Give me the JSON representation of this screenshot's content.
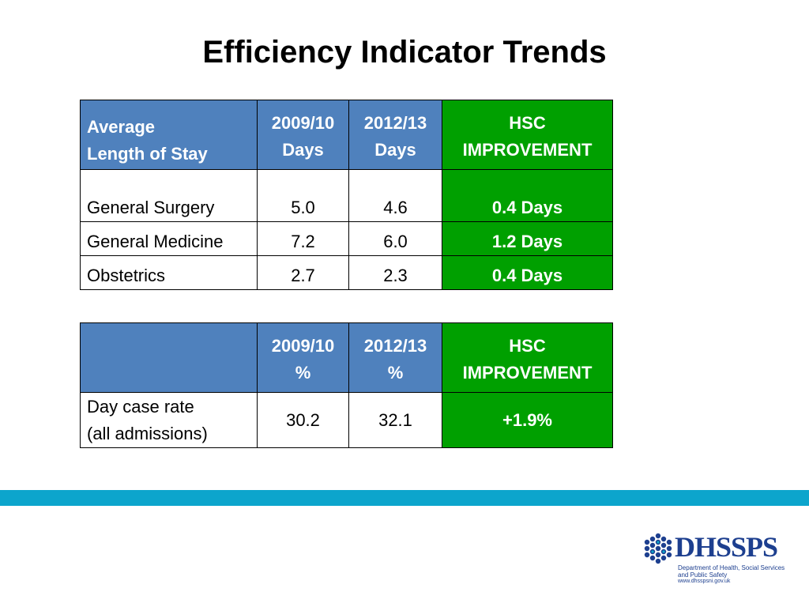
{
  "title": "Efficiency Indicator Trends",
  "table1": {
    "header": {
      "label_line1": "Average",
      "label_line2": "Length of Stay",
      "col1_line1": "2009/10",
      "col1_line2": "Days",
      "col2_line1": "2012/13",
      "col2_line2": "Days",
      "col3_line1": "HSC",
      "col3_line2": "IMPROVEMENT"
    },
    "rows": [
      {
        "label": "General Surgery",
        "v1": "5.0",
        "v2": "4.6",
        "imp": "0.4 Days"
      },
      {
        "label": "General Medicine",
        "v1": "7.2",
        "v2": "6.0",
        "imp": "1.2 Days"
      },
      {
        "label": "Obstetrics",
        "v1": "2.7",
        "v2": "2.3",
        "imp": "0.4 Days"
      }
    ]
  },
  "table2": {
    "header": {
      "col1_line1": "2009/10",
      "col1_line2": "%",
      "col2_line1": "2012/13",
      "col2_line2": "%",
      "col3_line1": "HSC",
      "col3_line2": "IMPROVEMENT"
    },
    "row": {
      "label_line1": "Day case rate",
      "label_line2": "(all admissions)",
      "v1": "30.2",
      "v2": "32.1",
      "imp": "+1.9%"
    }
  },
  "logo": {
    "word": "DHSSPS",
    "sub_line1": "Department of Health, Social Services",
    "sub_line2": "and Public Safety",
    "url": "www.dhsspsni.gov.uk"
  },
  "colors": {
    "header_blue": "#4f81bd",
    "improvement_green": "#00a000",
    "band_cyan": "#0ca5cc",
    "logo_navy": "#1d3f8f"
  }
}
